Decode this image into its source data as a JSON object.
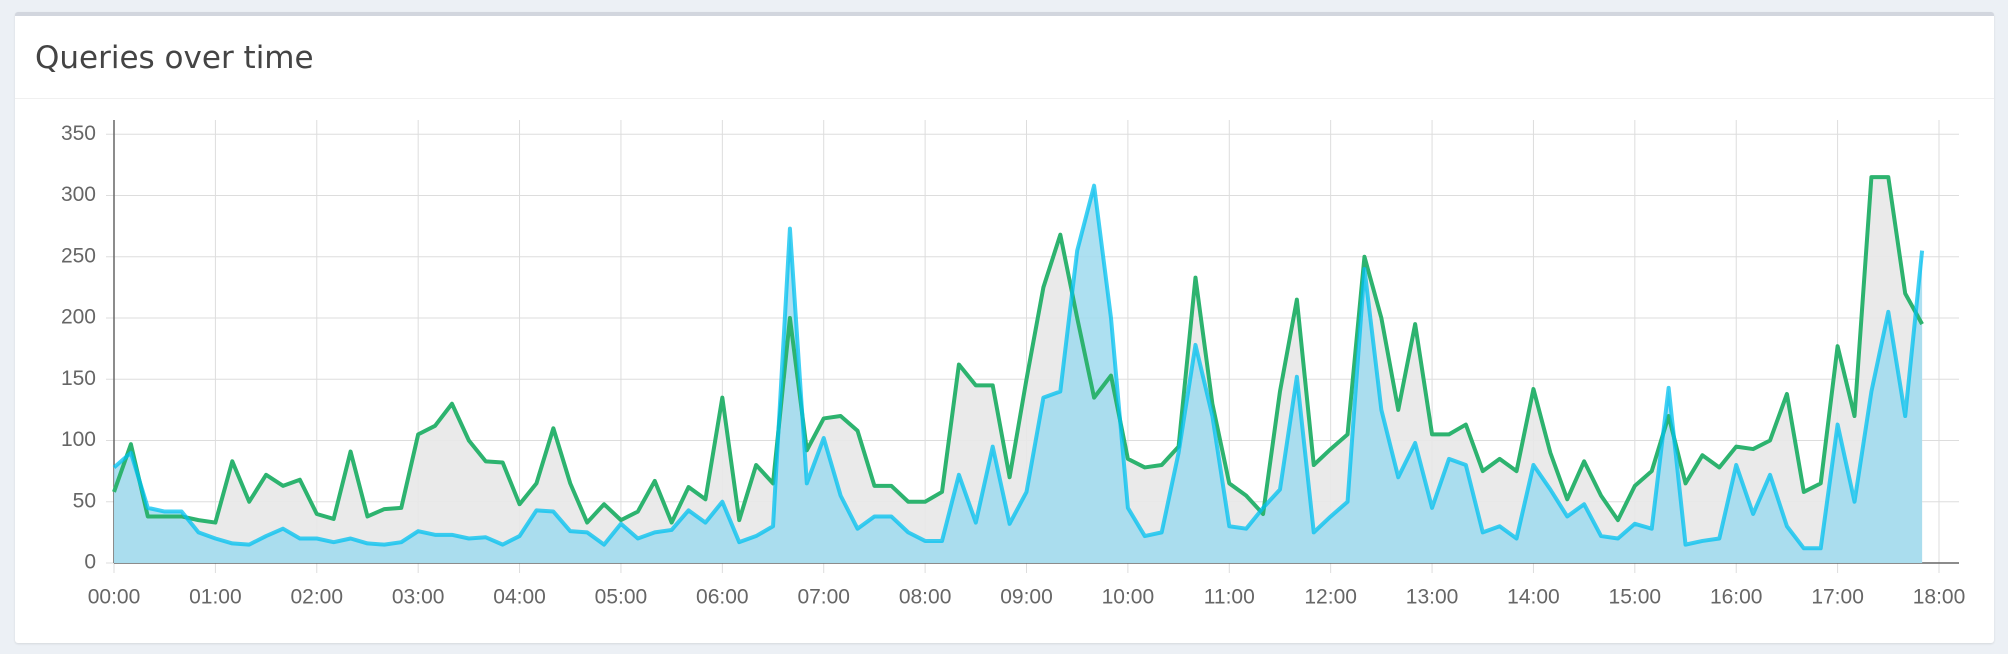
{
  "header": {
    "title": "Queries over time"
  },
  "chart_data": {
    "type": "area",
    "x": [
      0,
      10,
      20,
      30,
      40,
      50,
      60,
      70,
      80,
      90,
      100,
      110,
      120,
      130,
      140,
      150,
      160,
      170,
      180,
      190,
      200,
      210,
      220,
      230,
      240,
      250,
      260,
      270,
      280,
      290,
      300,
      310,
      320,
      330,
      340,
      350,
      360,
      370,
      380,
      390,
      400,
      410,
      420,
      430,
      440,
      450,
      460,
      470,
      480,
      490,
      500,
      510,
      520,
      530,
      540,
      550,
      560,
      570,
      580,
      590,
      600,
      610,
      620,
      630,
      640,
      650,
      660,
      670,
      680,
      690,
      700,
      710,
      720,
      730,
      740,
      750,
      760,
      770,
      780,
      790,
      800,
      810,
      820,
      830,
      840,
      850,
      860,
      870,
      880,
      890,
      900,
      910,
      920,
      930,
      940,
      950,
      960,
      970,
      980,
      990,
      1000,
      1010,
      1020,
      1030,
      1040,
      1050,
      1060,
      1070
    ],
    "xlim": [
      0,
      1080
    ],
    "xticks": [
      {
        "value": 0,
        "label": "00:00"
      },
      {
        "value": 60,
        "label": "01:00"
      },
      {
        "value": 120,
        "label": "02:00"
      },
      {
        "value": 180,
        "label": "03:00"
      },
      {
        "value": 240,
        "label": "04:00"
      },
      {
        "value": 300,
        "label": "05:00"
      },
      {
        "value": 360,
        "label": "06:00"
      },
      {
        "value": 420,
        "label": "07:00"
      },
      {
        "value": 480,
        "label": "08:00"
      },
      {
        "value": 540,
        "label": "09:00"
      },
      {
        "value": 600,
        "label": "10:00"
      },
      {
        "value": 660,
        "label": "11:00"
      },
      {
        "value": 720,
        "label": "12:00"
      },
      {
        "value": 780,
        "label": "13:00"
      },
      {
        "value": 840,
        "label": "14:00"
      },
      {
        "value": 900,
        "label": "15:00"
      },
      {
        "value": 960,
        "label": "16:00"
      },
      {
        "value": 1020,
        "label": "17:00"
      },
      {
        "value": 1080,
        "label": "18:00"
      }
    ],
    "ylim": [
      0,
      360
    ],
    "yticks": [
      0,
      50,
      100,
      150,
      200,
      250,
      300,
      350
    ],
    "grid": true,
    "series": [
      {
        "color": "#2db36f",
        "fill": "#e8e8e8",
        "values": [
          58,
          97,
          38,
          38,
          38,
          35,
          33,
          83,
          50,
          72,
          63,
          68,
          40,
          36,
          91,
          38,
          44,
          45,
          105,
          112,
          130,
          100,
          83,
          82,
          48,
          65,
          110,
          65,
          33,
          48,
          35,
          42,
          67,
          33,
          62,
          52,
          135,
          35,
          80,
          65,
          200,
          92,
          118,
          120,
          108,
          63,
          63,
          50,
          50,
          58,
          162,
          145,
          145,
          70,
          150,
          225,
          268,
          200,
          135,
          153,
          85,
          78,
          80,
          95,
          233,
          130,
          65,
          55,
          40,
          140,
          215,
          80,
          93,
          105,
          250,
          200,
          125,
          195,
          105,
          105,
          113,
          75,
          85,
          75,
          142,
          90,
          52,
          83,
          55,
          35,
          63,
          75,
          120,
          65,
          88,
          78,
          95,
          93,
          100,
          138,
          58,
          65,
          177,
          120,
          315,
          315,
          220,
          195
        ]
      },
      {
        "color": "#00c0ef",
        "fill": "#9fdbee",
        "values": [
          78,
          90,
          45,
          42,
          42,
          25,
          20,
          16,
          15,
          22,
          28,
          20,
          20,
          17,
          20,
          16,
          15,
          17,
          26,
          23,
          23,
          20,
          21,
          15,
          22,
          43,
          42,
          26,
          25,
          15,
          32,
          20,
          25,
          27,
          43,
          33,
          50,
          17,
          22,
          30,
          273,
          65,
          102,
          55,
          28,
          38,
          38,
          25,
          18,
          18,
          72,
          33,
          95,
          32,
          58,
          135,
          140,
          255,
          308,
          200,
          45,
          22,
          25,
          90,
          178,
          120,
          30,
          28,
          45,
          60,
          152,
          25,
          38,
          50,
          240,
          125,
          70,
          98,
          45,
          85,
          80,
          25,
          30,
          20,
          80,
          60,
          38,
          48,
          22,
          20,
          32,
          28,
          143,
          15,
          18,
          20,
          80,
          40,
          72,
          30,
          12,
          12,
          113,
          50,
          140,
          205,
          120,
          255
        ]
      }
    ]
  }
}
